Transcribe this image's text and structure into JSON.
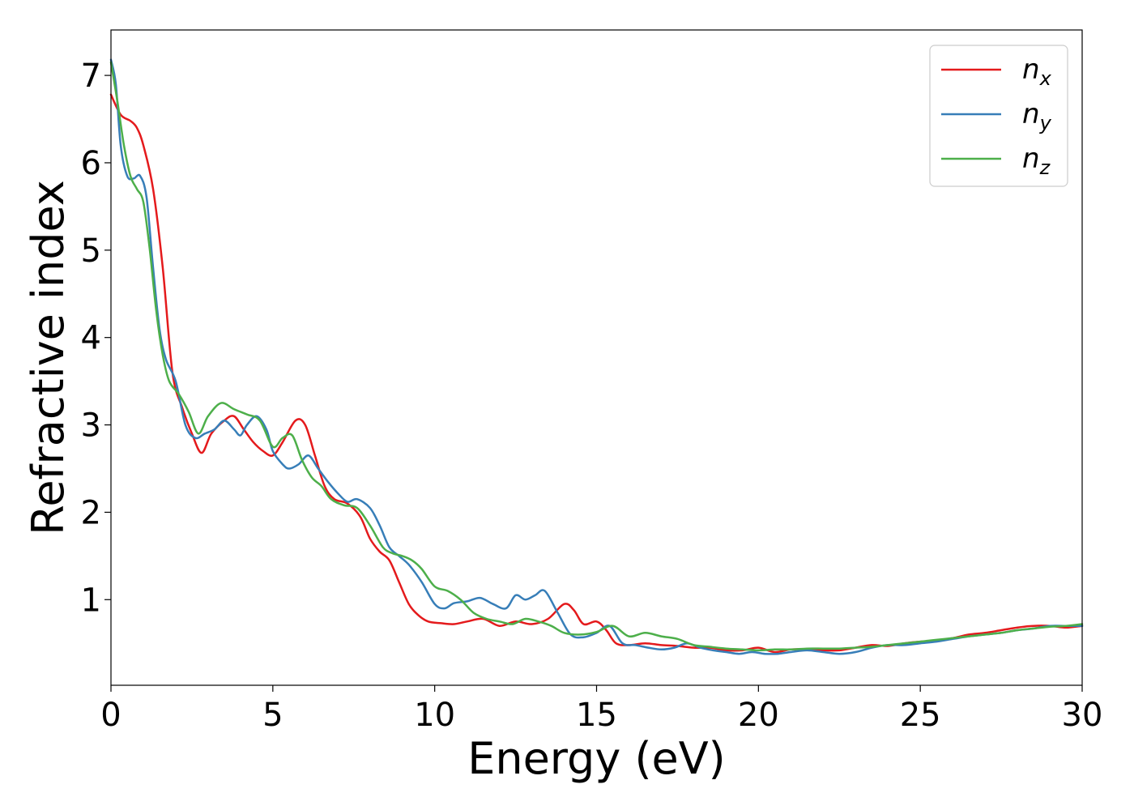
{
  "chart_data": {
    "type": "line",
    "xlabel": "Energy (eV)",
    "ylabel": "Refractive index",
    "xlim": [
      0,
      30
    ],
    "ylim": [
      0.02,
      7.52
    ],
    "xticks": [
      "0",
      "5",
      "10",
      "15",
      "20",
      "25",
      "30"
    ],
    "yticks": [
      "1",
      "2",
      "3",
      "4",
      "5",
      "6",
      "7"
    ],
    "legend_position": "top-right",
    "grid": false,
    "series": [
      {
        "name": "n",
        "sub": "x",
        "color": "#e41a1c",
        "x": [
          0,
          0.3,
          0.6,
          0.8,
          1.0,
          1.3,
          1.6,
          1.9,
          2.2,
          2.5,
          2.8,
          3.1,
          3.5,
          3.8,
          4.1,
          4.4,
          4.7,
          5.0,
          5.3,
          5.7,
          6.0,
          6.3,
          6.6,
          6.9,
          7.3,
          7.7,
          8.0,
          8.3,
          8.6,
          8.9,
          9.2,
          9.5,
          9.8,
          10.2,
          10.6,
          11.0,
          11.5,
          12.0,
          12.5,
          13.0,
          13.5,
          14.0,
          14.3,
          14.6,
          15.0,
          15.3,
          15.6,
          16.0,
          16.5,
          17.0,
          17.5,
          18.0,
          18.5,
          19.0,
          19.5,
          20.0,
          20.5,
          21.0,
          21.5,
          22.0,
          22.5,
          23.0,
          23.5,
          24.0,
          24.5,
          25.0,
          25.5,
          26.0,
          26.5,
          27.0,
          27.5,
          28.0,
          28.5,
          29.0,
          29.5,
          30.0
        ],
        "y": [
          6.78,
          6.55,
          6.48,
          6.4,
          6.2,
          5.7,
          4.8,
          3.6,
          3.2,
          2.9,
          2.68,
          2.9,
          3.05,
          3.1,
          2.95,
          2.8,
          2.7,
          2.65,
          2.8,
          3.05,
          3.0,
          2.65,
          2.3,
          2.15,
          2.1,
          1.95,
          1.7,
          1.55,
          1.45,
          1.2,
          0.95,
          0.82,
          0.75,
          0.73,
          0.72,
          0.75,
          0.78,
          0.7,
          0.75,
          0.72,
          0.78,
          0.95,
          0.88,
          0.72,
          0.75,
          0.65,
          0.5,
          0.48,
          0.5,
          0.48,
          0.47,
          0.45,
          0.45,
          0.42,
          0.42,
          0.45,
          0.4,
          0.43,
          0.43,
          0.42,
          0.42,
          0.45,
          0.48,
          0.47,
          0.5,
          0.52,
          0.53,
          0.56,
          0.6,
          0.62,
          0.65,
          0.68,
          0.7,
          0.7,
          0.68,
          0.7
        ]
      },
      {
        "name": "n",
        "sub": "y",
        "color": "#377eb8",
        "x": [
          0,
          0.15,
          0.3,
          0.5,
          0.7,
          0.9,
          1.1,
          1.3,
          1.5,
          1.7,
          2.0,
          2.3,
          2.6,
          2.9,
          3.2,
          3.5,
          3.8,
          4.0,
          4.2,
          4.5,
          4.8,
          5.0,
          5.3,
          5.5,
          5.8,
          6.1,
          6.4,
          6.7,
          7.0,
          7.3,
          7.6,
          8.0,
          8.3,
          8.6,
          8.9,
          9.2,
          9.6,
          10.0,
          10.3,
          10.6,
          11.0,
          11.4,
          11.8,
          12.2,
          12.5,
          12.8,
          13.1,
          13.4,
          13.8,
          14.2,
          14.6,
          15.0,
          15.4,
          15.8,
          16.2,
          16.6,
          17.0,
          17.4,
          17.8,
          18.2,
          18.6,
          19.0,
          19.4,
          19.8,
          20.2,
          20.6,
          21.0,
          21.5,
          22.0,
          22.5,
          23.0,
          23.5,
          24.0,
          24.5,
          25.0,
          25.5,
          26.0,
          26.5,
          27.0,
          27.5,
          28.0,
          28.5,
          29.0,
          29.5,
          30.0
        ],
        "y": [
          7.18,
          6.9,
          6.2,
          5.85,
          5.82,
          5.85,
          5.6,
          4.8,
          4.1,
          3.75,
          3.5,
          3.0,
          2.85,
          2.9,
          2.95,
          3.05,
          2.95,
          2.88,
          3.0,
          3.1,
          2.95,
          2.7,
          2.55,
          2.5,
          2.55,
          2.65,
          2.5,
          2.35,
          2.22,
          2.12,
          2.15,
          2.05,
          1.85,
          1.6,
          1.5,
          1.4,
          1.2,
          0.95,
          0.9,
          0.96,
          0.98,
          1.02,
          0.95,
          0.9,
          1.05,
          1.0,
          1.05,
          1.1,
          0.85,
          0.6,
          0.57,
          0.62,
          0.7,
          0.5,
          0.48,
          0.45,
          0.43,
          0.45,
          0.5,
          0.45,
          0.42,
          0.4,
          0.38,
          0.4,
          0.38,
          0.38,
          0.4,
          0.42,
          0.4,
          0.38,
          0.4,
          0.45,
          0.48,
          0.48,
          0.5,
          0.52,
          0.55,
          0.58,
          0.6,
          0.62,
          0.65,
          0.67,
          0.7,
          0.7,
          0.7
        ]
      },
      {
        "name": "n",
        "sub": "z",
        "color": "#4daf4a",
        "x": [
          0,
          0.2,
          0.4,
          0.6,
          0.8,
          1.0,
          1.2,
          1.4,
          1.6,
          1.8,
          2.1,
          2.4,
          2.7,
          3.0,
          3.4,
          3.8,
          4.2,
          4.6,
          5.0,
          5.3,
          5.6,
          5.9,
          6.2,
          6.5,
          6.8,
          7.2,
          7.6,
          8.0,
          8.4,
          8.7,
          9.0,
          9.3,
          9.6,
          10.0,
          10.4,
          10.8,
          11.2,
          11.6,
          12.0,
          12.4,
          12.8,
          13.2,
          13.6,
          14.0,
          14.5,
          15.0,
          15.5,
          16.0,
          16.5,
          17.0,
          17.5,
          18.0,
          18.5,
          19.0,
          19.5,
          20.0,
          20.5,
          21.0,
          21.5,
          22.0,
          22.5,
          23.0,
          23.5,
          24.0,
          24.5,
          25.0,
          25.5,
          26.0,
          26.5,
          27.0,
          27.5,
          28.0,
          28.5,
          29.0,
          29.5,
          30.0
        ],
        "y": [
          7.15,
          6.7,
          6.2,
          5.85,
          5.7,
          5.55,
          5.0,
          4.3,
          3.8,
          3.5,
          3.35,
          3.15,
          2.9,
          3.1,
          3.25,
          3.18,
          3.12,
          3.05,
          2.75,
          2.85,
          2.88,
          2.6,
          2.4,
          2.3,
          2.15,
          2.08,
          2.05,
          1.85,
          1.6,
          1.53,
          1.5,
          1.45,
          1.35,
          1.15,
          1.1,
          1.0,
          0.85,
          0.78,
          0.75,
          0.72,
          0.78,
          0.75,
          0.7,
          0.62,
          0.6,
          0.63,
          0.7,
          0.58,
          0.62,
          0.58,
          0.55,
          0.48,
          0.46,
          0.44,
          0.43,
          0.42,
          0.43,
          0.43,
          0.44,
          0.44,
          0.44,
          0.45,
          0.46,
          0.48,
          0.5,
          0.52,
          0.54,
          0.56,
          0.58,
          0.6,
          0.62,
          0.65,
          0.67,
          0.69,
          0.7,
          0.72
        ]
      }
    ]
  }
}
